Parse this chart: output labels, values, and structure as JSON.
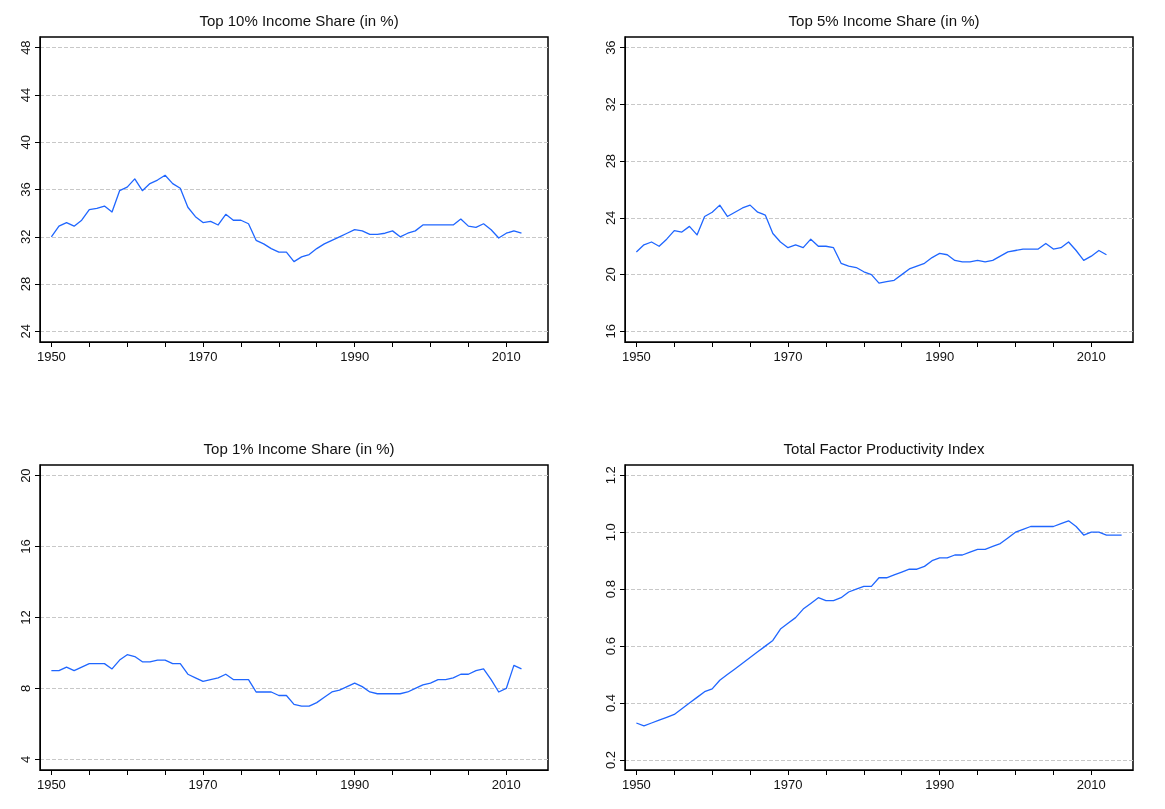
{
  "chart_data": [
    {
      "type": "line",
      "title": "Top 10% Income Share (in %)",
      "color": "#1f66ff",
      "grid": "y",
      "x": [
        1950,
        1951,
        1952,
        1953,
        1954,
        1955,
        1956,
        1957,
        1958,
        1959,
        1960,
        1961,
        1962,
        1963,
        1964,
        1965,
        1966,
        1967,
        1968,
        1969,
        1970,
        1971,
        1972,
        1973,
        1974,
        1975,
        1976,
        1977,
        1978,
        1979,
        1980,
        1981,
        1982,
        1983,
        1984,
        1985,
        1986,
        1987,
        1988,
        1989,
        1990,
        1991,
        1992,
        1993,
        1994,
        1995,
        1996,
        1997,
        1998,
        1999,
        2000,
        2001,
        2002,
        2003,
        2004,
        2005,
        2006,
        2007,
        2008,
        2009,
        2010,
        2011,
        2012
      ],
      "values": [
        32.0,
        32.9,
        33.2,
        32.9,
        33.4,
        34.3,
        34.4,
        34.6,
        34.1,
        35.9,
        36.2,
        36.9,
        35.9,
        36.5,
        36.8,
        37.2,
        36.5,
        36.1,
        34.5,
        33.7,
        33.2,
        33.3,
        33.0,
        33.9,
        33.4,
        33.4,
        33.1,
        31.7,
        31.4,
        31.0,
        30.7,
        30.7,
        29.9,
        30.3,
        30.5,
        31.0,
        31.4,
        31.7,
        32.0,
        32.3,
        32.6,
        32.5,
        32.2,
        32.2,
        32.3,
        32.5,
        32.0,
        32.3,
        32.5,
        33.0,
        33.0,
        33.0,
        33.0,
        33.0,
        33.5,
        32.9,
        32.8,
        33.1,
        32.6,
        31.9,
        32.3,
        32.5,
        32.3
      ],
      "xlim": [
        1948.5,
        2015.5
      ],
      "xticks": [
        1950,
        {
          "value": 1955,
          "label": null
        },
        {
          "value": 1960,
          "label": null
        },
        {
          "value": 1965,
          "label": null
        },
        1970,
        {
          "value": 1975,
          "label": null
        },
        {
          "value": 1980,
          "label": null
        },
        {
          "value": 1985,
          "label": null
        },
        1990,
        {
          "value": 1995,
          "label": null
        },
        {
          "value": 2000,
          "label": null
        },
        {
          "value": 2005,
          "label": null
        },
        2010
      ],
      "ylim": [
        23.1,
        48.9
      ],
      "yticks": [
        24,
        28,
        32,
        36,
        40,
        44,
        48
      ]
    },
    {
      "type": "line",
      "title": "Top 5% Income Share (in %)",
      "color": "#1f66ff",
      "grid": "y",
      "x": [
        1950,
        1951,
        1952,
        1953,
        1954,
        1955,
        1956,
        1957,
        1958,
        1959,
        1960,
        1961,
        1962,
        1963,
        1964,
        1965,
        1966,
        1967,
        1968,
        1969,
        1970,
        1971,
        1972,
        1973,
        1974,
        1975,
        1976,
        1977,
        1978,
        1979,
        1980,
        1981,
        1982,
        1983,
        1984,
        1985,
        1986,
        1987,
        1988,
        1989,
        1990,
        1991,
        1992,
        1993,
        1994,
        1995,
        1996,
        1997,
        1998,
        1999,
        2000,
        2001,
        2002,
        2003,
        2004,
        2005,
        2006,
        2007,
        2008,
        2009,
        2010,
        2011,
        2012
      ],
      "values": [
        21.6,
        22.1,
        22.3,
        22.0,
        22.5,
        23.1,
        23.0,
        23.4,
        22.8,
        24.1,
        24.4,
        24.9,
        24.1,
        24.4,
        24.7,
        24.9,
        24.4,
        24.2,
        22.9,
        22.3,
        21.9,
        22.1,
        21.9,
        22.5,
        22.0,
        22.0,
        21.9,
        20.8,
        20.6,
        20.5,
        20.2,
        20.0,
        19.4,
        19.5,
        19.6,
        20.0,
        20.4,
        20.6,
        20.8,
        21.2,
        21.5,
        21.4,
        21.0,
        20.9,
        20.9,
        21.0,
        20.9,
        21.0,
        21.3,
        21.6,
        21.7,
        21.8,
        21.8,
        21.8,
        22.2,
        21.8,
        21.9,
        22.3,
        21.7,
        21.0,
        21.3,
        21.7,
        21.4
      ],
      "xlim": [
        1948.5,
        2015.5
      ],
      "xticks": [
        1950,
        {
          "value": 1955,
          "label": null
        },
        {
          "value": 1960,
          "label": null
        },
        {
          "value": 1965,
          "label": null
        },
        1970,
        {
          "value": 1975,
          "label": null
        },
        {
          "value": 1980,
          "label": null
        },
        {
          "value": 1985,
          "label": null
        },
        1990,
        {
          "value": 1995,
          "label": null
        },
        {
          "value": 2000,
          "label": null
        },
        {
          "value": 2005,
          "label": null
        },
        2010
      ],
      "ylim": [
        15.25,
        36.75
      ],
      "yticks": [
        16,
        20,
        24,
        28,
        32,
        36
      ]
    },
    {
      "type": "line",
      "title": "Top 1% Income Share (in %)",
      "color": "#1f66ff",
      "grid": "y",
      "x": [
        1950,
        1951,
        1952,
        1953,
        1954,
        1955,
        1956,
        1957,
        1958,
        1959,
        1960,
        1961,
        1962,
        1963,
        1964,
        1965,
        1966,
        1967,
        1968,
        1969,
        1970,
        1971,
        1972,
        1973,
        1974,
        1975,
        1976,
        1977,
        1978,
        1979,
        1980,
        1981,
        1982,
        1983,
        1984,
        1985,
        1986,
        1987,
        1988,
        1989,
        1990,
        1991,
        1992,
        1993,
        1994,
        1995,
        1996,
        1997,
        1998,
        1999,
        2000,
        2001,
        2002,
        2003,
        2004,
        2005,
        2006,
        2007,
        2008,
        2009,
        2010,
        2011,
        2012
      ],
      "values": [
        9.0,
        9.0,
        9.2,
        9.0,
        9.2,
        9.4,
        9.4,
        9.4,
        9.1,
        9.6,
        9.9,
        9.8,
        9.5,
        9.5,
        9.6,
        9.6,
        9.4,
        9.4,
        8.8,
        8.6,
        8.4,
        8.5,
        8.6,
        8.8,
        8.5,
        8.5,
        8.5,
        7.8,
        7.8,
        7.8,
        7.6,
        7.6,
        7.1,
        7.0,
        7.0,
        7.2,
        7.5,
        7.8,
        7.9,
        8.1,
        8.3,
        8.1,
        7.8,
        7.7,
        7.7,
        7.7,
        7.7,
        7.8,
        8.0,
        8.2,
        8.3,
        8.5,
        8.5,
        8.6,
        8.8,
        8.8,
        9.0,
        9.1,
        8.5,
        7.8,
        8.0,
        9.3,
        9.1
      ],
      "xlim": [
        1948.5,
        2015.5
      ],
      "xticks": [
        1950,
        {
          "value": 1955,
          "label": null
        },
        {
          "value": 1960,
          "label": null
        },
        {
          "value": 1965,
          "label": null
        },
        1970,
        {
          "value": 1975,
          "label": null
        },
        {
          "value": 1980,
          "label": null
        },
        {
          "value": 1985,
          "label": null
        },
        1990,
        {
          "value": 1995,
          "label": null
        },
        {
          "value": 2000,
          "label": null
        },
        {
          "value": 2005,
          "label": null
        },
        2010
      ],
      "ylim": [
        3.4,
        20.6
      ],
      "yticks": [
        4,
        8,
        12,
        16,
        20
      ]
    },
    {
      "type": "line",
      "title": "Total Factor Productivity Index",
      "color": "#1f66ff",
      "grid": "y",
      "x": [
        1950,
        1951,
        1952,
        1953,
        1954,
        1955,
        1956,
        1957,
        1958,
        1959,
        1960,
        1961,
        1962,
        1963,
        1964,
        1965,
        1966,
        1967,
        1968,
        1969,
        1970,
        1971,
        1972,
        1973,
        1974,
        1975,
        1976,
        1977,
        1978,
        1979,
        1980,
        1981,
        1982,
        1983,
        1984,
        1985,
        1986,
        1987,
        1988,
        1989,
        1990,
        1991,
        1992,
        1993,
        1994,
        1995,
        1996,
        1997,
        1998,
        1999,
        2000,
        2001,
        2002,
        2003,
        2004,
        2005,
        2006,
        2007,
        2008,
        2009,
        2010,
        2011,
        2012,
        2013,
        2014
      ],
      "values": [
        0.33,
        0.32,
        0.33,
        0.34,
        0.35,
        0.36,
        0.38,
        0.4,
        0.42,
        0.44,
        0.45,
        0.48,
        0.5,
        0.52,
        0.54,
        0.56,
        0.58,
        0.6,
        0.62,
        0.66,
        0.68,
        0.7,
        0.73,
        0.75,
        0.77,
        0.76,
        0.76,
        0.77,
        0.79,
        0.8,
        0.81,
        0.81,
        0.84,
        0.84,
        0.85,
        0.86,
        0.87,
        0.87,
        0.88,
        0.9,
        0.91,
        0.91,
        0.92,
        0.92,
        0.93,
        0.94,
        0.94,
        0.95,
        0.96,
        0.98,
        1.0,
        1.01,
        1.02,
        1.02,
        1.02,
        1.02,
        1.03,
        1.04,
        1.02,
        0.99,
        1.0,
        1.0,
        0.99,
        0.99,
        0.99
      ],
      "xlim": [
        1948.5,
        2015.5
      ],
      "xticks": [
        1950,
        {
          "value": 1955,
          "label": null
        },
        {
          "value": 1960,
          "label": null
        },
        {
          "value": 1965,
          "label": null
        },
        1970,
        {
          "value": 1975,
          "label": null
        },
        {
          "value": 1980,
          "label": null
        },
        {
          "value": 1985,
          "label": null
        },
        1990,
        {
          "value": 1995,
          "label": null
        },
        {
          "value": 2000,
          "label": null
        },
        {
          "value": 2005,
          "label": null
        },
        2010
      ],
      "ylim": [
        0.165,
        1.236
      ],
      "yticks": [
        {
          "value": 0.2,
          "label": "0.2"
        },
        {
          "value": 0.4,
          "label": "0.4"
        },
        {
          "value": 0.6,
          "label": "0.6"
        },
        {
          "value": 0.8,
          "label": "0.8"
        },
        {
          "value": 1.0,
          "label": "1.0"
        },
        {
          "value": 1.2,
          "label": "1.2"
        }
      ]
    }
  ]
}
